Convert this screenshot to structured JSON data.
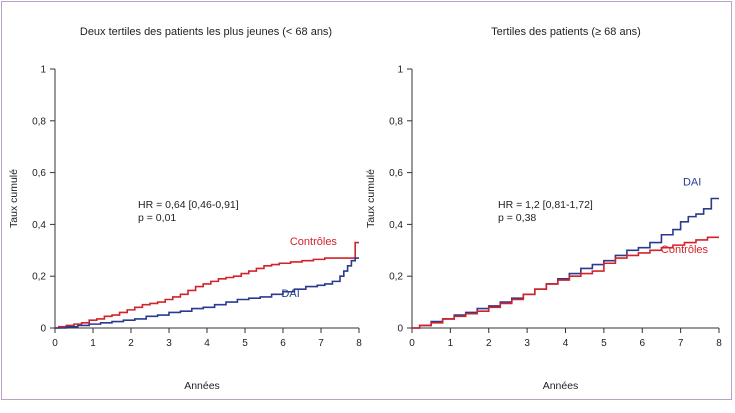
{
  "chart_data": [
    {
      "type": "line",
      "title": "Deux tertiles des patients les plus jeunes (< 68 ans)",
      "xlabel": "Années",
      "ylabel": "Taux cumulé",
      "xlim": [
        0,
        8
      ],
      "ylim": [
        0,
        1
      ],
      "xticks": [
        "0",
        "1",
        "2",
        "3",
        "4",
        "5",
        "6",
        "7",
        "8"
      ],
      "yticks": [
        "0",
        "0,2",
        "0,4",
        "0,6",
        "0,8",
        "1"
      ],
      "annotation": [
        "HR = 0,64 [0,46-0,91]",
        "p = 0,01"
      ],
      "series": [
        {
          "name": "Contrôles",
          "color": "#d2232a",
          "x": [
            0,
            0.1,
            0.3,
            0.5,
            0.7,
            0.9,
            1.1,
            1.3,
            1.5,
            1.7,
            1.9,
            2.1,
            2.3,
            2.5,
            2.7,
            2.9,
            3.1,
            3.3,
            3.5,
            3.7,
            3.9,
            4.1,
            4.3,
            4.5,
            4.7,
            4.9,
            5.1,
            5.3,
            5.5,
            5.7,
            5.9,
            6.2,
            6.5,
            6.8,
            7.1,
            7.4,
            7.6,
            7.8,
            7.9,
            8.0
          ],
          "y": [
            0,
            0.005,
            0.01,
            0.015,
            0.02,
            0.03,
            0.035,
            0.045,
            0.05,
            0.06,
            0.07,
            0.08,
            0.09,
            0.095,
            0.1,
            0.11,
            0.12,
            0.13,
            0.145,
            0.16,
            0.17,
            0.18,
            0.19,
            0.195,
            0.2,
            0.21,
            0.22,
            0.23,
            0.24,
            0.245,
            0.25,
            0.255,
            0.26,
            0.265,
            0.27,
            0.27,
            0.27,
            0.27,
            0.33,
            0.33
          ]
        },
        {
          "name": "DAI",
          "color": "#2a3b8f",
          "x": [
            0,
            0.3,
            0.6,
            0.9,
            1.2,
            1.5,
            1.8,
            2.1,
            2.4,
            2.7,
            3.0,
            3.3,
            3.6,
            3.9,
            4.2,
            4.5,
            4.8,
            5.1,
            5.4,
            5.7,
            6.0,
            6.3,
            6.6,
            6.9,
            7.1,
            7.3,
            7.5,
            7.6,
            7.7,
            7.8,
            7.9,
            8.0
          ],
          "y": [
            0,
            0.005,
            0.01,
            0.015,
            0.02,
            0.025,
            0.03,
            0.035,
            0.045,
            0.05,
            0.06,
            0.065,
            0.075,
            0.08,
            0.09,
            0.1,
            0.11,
            0.115,
            0.12,
            0.13,
            0.14,
            0.15,
            0.16,
            0.165,
            0.17,
            0.18,
            0.2,
            0.22,
            0.24,
            0.26,
            0.27,
            0.27
          ]
        }
      ],
      "series_labels": [
        {
          "text": "Contrôles",
          "x": 6.8,
          "y": 0.32,
          "color": "#d2232a"
        },
        {
          "text": "DAI",
          "x": 6.2,
          "y": 0.12,
          "color": "#2a3b8f"
        }
      ]
    },
    {
      "type": "line",
      "title": "Tertiles des patients (≥ 68 ans)",
      "xlabel": "Années",
      "ylabel": "Taux cumulé",
      "xlim": [
        0,
        8
      ],
      "ylim": [
        0,
        1
      ],
      "xticks": [
        "0",
        "1",
        "2",
        "3",
        "4",
        "5",
        "6",
        "7",
        "8"
      ],
      "yticks": [
        "0",
        "0,2",
        "0,4",
        "0,6",
        "0,8",
        "1"
      ],
      "annotation": [
        "HR = 1,2 [0,81-1,72]",
        "p = 0,38"
      ],
      "series": [
        {
          "name": "DAI",
          "color": "#2a3b8f",
          "x": [
            0,
            0.2,
            0.5,
            0.8,
            1.1,
            1.4,
            1.7,
            2.0,
            2.3,
            2.6,
            2.9,
            3.2,
            3.5,
            3.8,
            4.1,
            4.4,
            4.7,
            5.0,
            5.3,
            5.6,
            5.9,
            6.2,
            6.5,
            6.8,
            7.0,
            7.2,
            7.4,
            7.6,
            7.8,
            8.0
          ],
          "y": [
            0,
            0.01,
            0.025,
            0.035,
            0.05,
            0.06,
            0.075,
            0.085,
            0.1,
            0.115,
            0.13,
            0.15,
            0.17,
            0.19,
            0.21,
            0.23,
            0.245,
            0.26,
            0.28,
            0.3,
            0.31,
            0.33,
            0.36,
            0.38,
            0.41,
            0.43,
            0.44,
            0.46,
            0.5,
            0.5
          ]
        },
        {
          "name": "Contrôles",
          "color": "#d2232a",
          "x": [
            0,
            0.2,
            0.5,
            0.8,
            1.1,
            1.4,
            1.7,
            2.0,
            2.3,
            2.6,
            2.9,
            3.2,
            3.5,
            3.8,
            4.1,
            4.4,
            4.7,
            5.0,
            5.3,
            5.6,
            5.9,
            6.2,
            6.5,
            6.8,
            7.1,
            7.4,
            7.7,
            8.0
          ],
          "y": [
            0,
            0.01,
            0.02,
            0.035,
            0.045,
            0.055,
            0.065,
            0.08,
            0.095,
            0.11,
            0.13,
            0.15,
            0.17,
            0.185,
            0.2,
            0.21,
            0.22,
            0.25,
            0.27,
            0.28,
            0.29,
            0.3,
            0.31,
            0.32,
            0.33,
            0.34,
            0.35,
            0.35
          ]
        }
      ],
      "series_labels": [
        {
          "text": "DAI",
          "x": 7.3,
          "y": 0.55,
          "color": "#2a3b8f"
        },
        {
          "text": "Contrôles",
          "x": 7.1,
          "y": 0.29,
          "color": "#d2232a"
        }
      ]
    }
  ]
}
